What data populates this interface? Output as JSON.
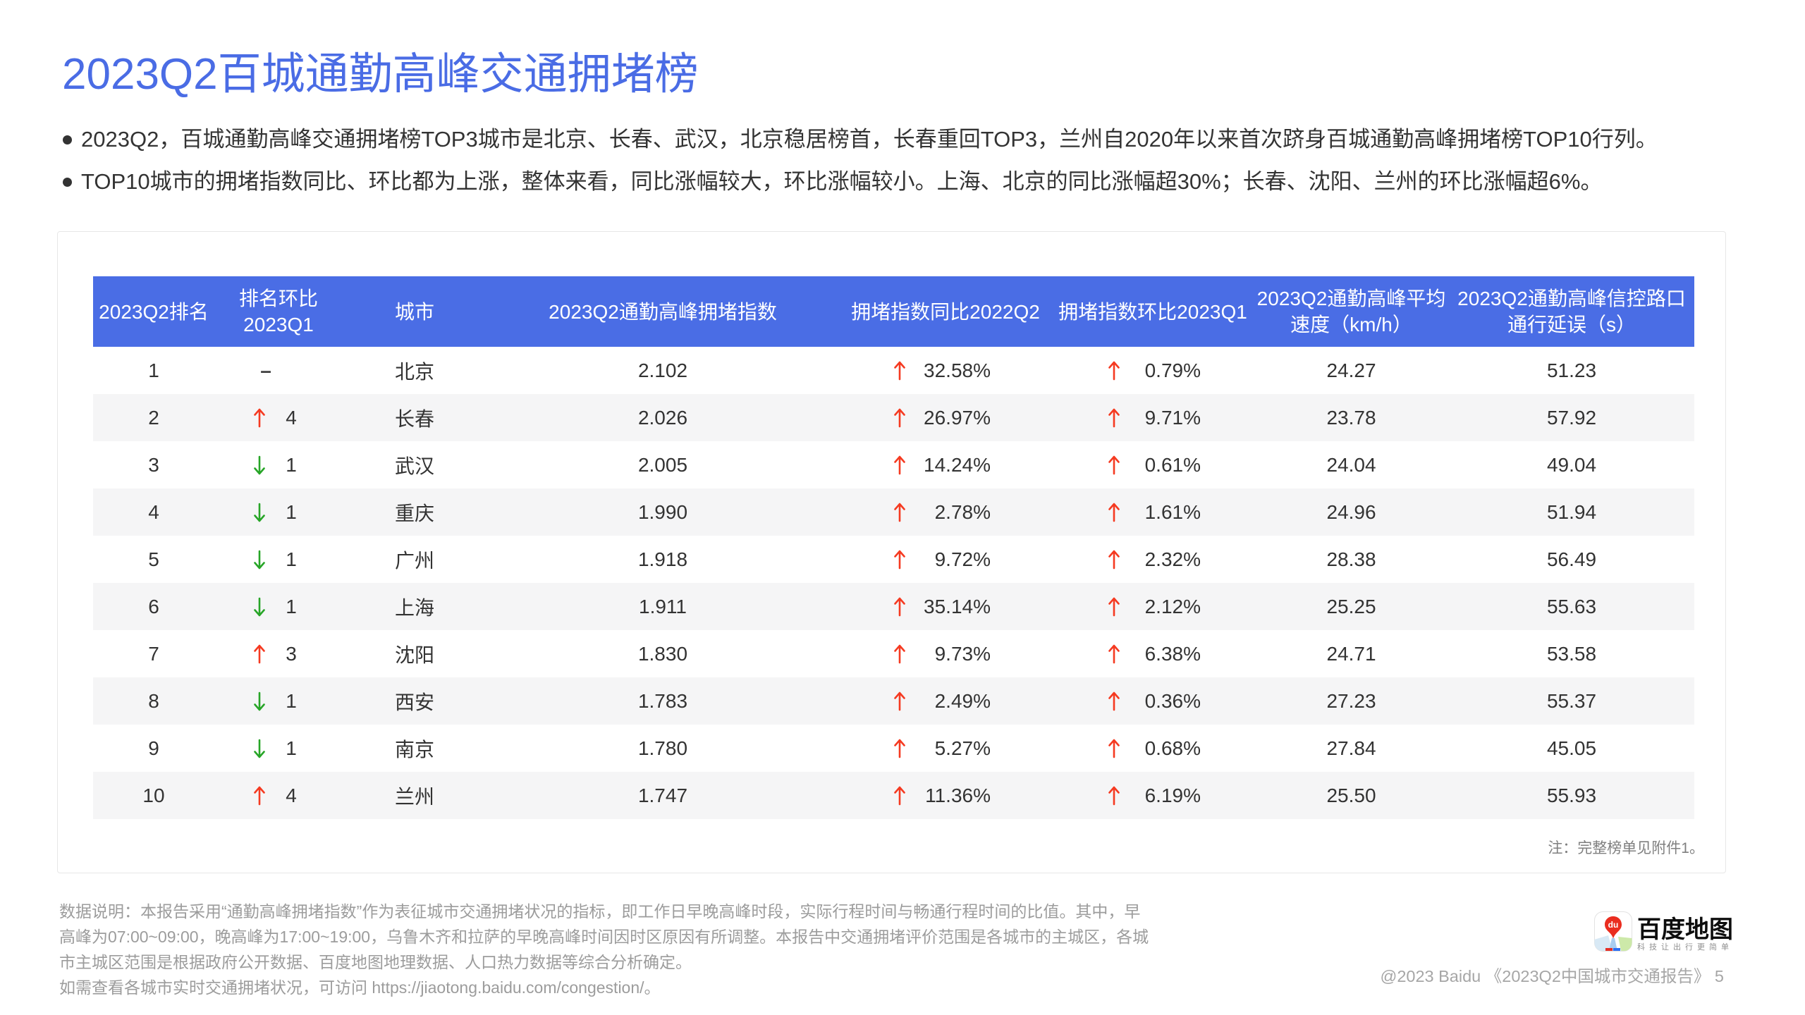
{
  "page": {
    "title": "2023Q2百城通勤高峰交通拥堵榜",
    "bullets": [
      "2023Q2，百城通勤高峰交通拥堵榜TOP3城市是北京、长春、武汉，北京稳居榜首，长春重回TOP3，兰州自2020年以来首次跻身百城通勤高峰拥堵榜TOP10行列。",
      "TOP10城市的拥堵指数同比、环比都为上涨，整体来看，同比涨幅较大，环比涨幅较小。上海、北京的同比涨幅超30%；长春、沈阳、兰州的环比涨幅超6%。"
    ]
  },
  "table": {
    "columns": [
      {
        "id": "rank",
        "label": "2023Q2排名"
      },
      {
        "id": "rank_change",
        "label": "排名环比\n2023Q1"
      },
      {
        "id": "city",
        "label": "城市"
      },
      {
        "id": "index",
        "label": "2023Q2通勤高峰拥堵指数"
      },
      {
        "id": "yoy",
        "label": "拥堵指数同比2022Q2"
      },
      {
        "id": "qoq",
        "label": "拥堵指数环比2023Q1"
      },
      {
        "id": "speed",
        "label": "2023Q2通勤高峰平均\n速度（km/h）"
      },
      {
        "id": "delay",
        "label": "2023Q2通勤高峰信控路口\n通行延误（s）"
      }
    ],
    "rows": [
      {
        "rank": "1",
        "change_dir": "none",
        "change_value": "–",
        "city": "北京",
        "index": "2.102",
        "yoy": "32.58%",
        "qoq": "0.79%",
        "speed": "24.27",
        "delay": "51.23"
      },
      {
        "rank": "2",
        "change_dir": "up",
        "change_value": "4",
        "city": "长春",
        "index": "2.026",
        "yoy": "26.97%",
        "qoq": "9.71%",
        "speed": "23.78",
        "delay": "57.92"
      },
      {
        "rank": "3",
        "change_dir": "down",
        "change_value": "1",
        "city": "武汉",
        "index": "2.005",
        "yoy": "14.24%",
        "qoq": "0.61%",
        "speed": "24.04",
        "delay": "49.04"
      },
      {
        "rank": "4",
        "change_dir": "down",
        "change_value": "1",
        "city": "重庆",
        "index": "1.990",
        "yoy": "2.78%",
        "qoq": "1.61%",
        "speed": "24.96",
        "delay": "51.94"
      },
      {
        "rank": "5",
        "change_dir": "down",
        "change_value": "1",
        "city": "广州",
        "index": "1.918",
        "yoy": "9.72%",
        "qoq": "2.32%",
        "speed": "28.38",
        "delay": "56.49"
      },
      {
        "rank": "6",
        "change_dir": "down",
        "change_value": "1",
        "city": "上海",
        "index": "1.911",
        "yoy": "35.14%",
        "qoq": "2.12%",
        "speed": "25.25",
        "delay": "55.63"
      },
      {
        "rank": "7",
        "change_dir": "up",
        "change_value": "3",
        "city": "沈阳",
        "index": "1.830",
        "yoy": "9.73%",
        "qoq": "6.38%",
        "speed": "24.71",
        "delay": "53.58"
      },
      {
        "rank": "8",
        "change_dir": "down",
        "change_value": "1",
        "city": "西安",
        "index": "1.783",
        "yoy": "2.49%",
        "qoq": "0.36%",
        "speed": "27.23",
        "delay": "55.37"
      },
      {
        "rank": "9",
        "change_dir": "down",
        "change_value": "1",
        "city": "南京",
        "index": "1.780",
        "yoy": "5.27%",
        "qoq": "0.68%",
        "speed": "27.84",
        "delay": "45.05"
      },
      {
        "rank": "10",
        "change_dir": "up",
        "change_value": "4",
        "city": "兰州",
        "index": "1.747",
        "yoy": "11.36%",
        "qoq": "6.19%",
        "speed": "25.50",
        "delay": "55.93"
      }
    ],
    "note": "注：完整榜单见附件1。"
  },
  "footnote": {
    "lines": [
      "数据说明：本报告采用“通勤高峰拥堵指数”作为表征城市交通拥堵状况的指标，即工作日早晚高峰时段，实际行程时间与畅通行程时间的比值。其中，早",
      "高峰为07:00~09:00，晚高峰为17:00~19:00，乌鲁木齐和拉萨的早晚高峰时间因时区原因有所调整。本报告中交通拥堵评价范围是各城市的主城区，各城",
      "市主城区范围是根据政府公开数据、百度地图地理数据、人口热力数据等综合分析确定。",
      "如需查看各城市实时交通拥堵状况，可访问 https://jiaotong.baidu.com/congestion/。"
    ]
  },
  "footer": {
    "brand_name": "百度地图",
    "brand_slogan": "科技让出行更简单",
    "brand_pin_text": "du",
    "copyright": "@2023 Baidu 《2023Q2中国城市交通报告》 5"
  },
  "colors": {
    "accent_blue": "#4A6DE5",
    "title_blue": "#4A6CE5",
    "up_red": "#F53A21",
    "down_green": "#27A527",
    "stripe_gray": "#F5F5F6"
  }
}
